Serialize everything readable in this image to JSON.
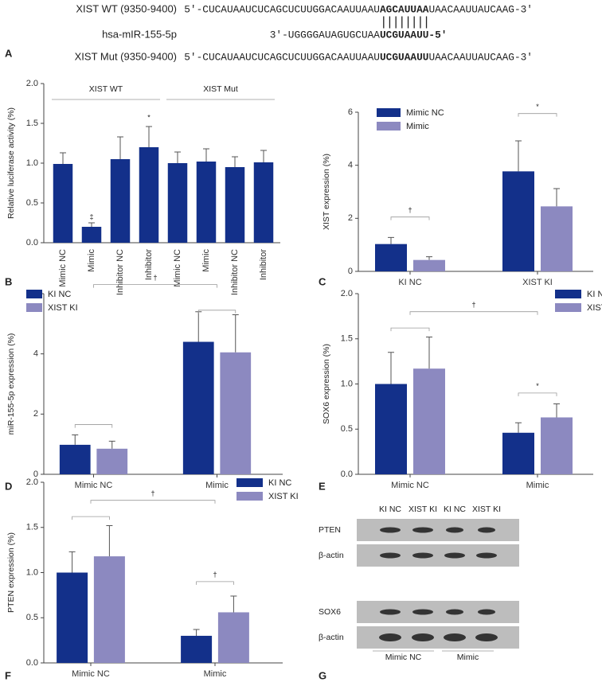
{
  "sequences": {
    "panel": "A",
    "pairing": "||||||||",
    "rows": [
      {
        "label": "XIST WT (9350-9400)",
        "parts": [
          "5'-CUCAUAAUCUCAGCUCUUGGACAAUUAAU",
          "AGCAUUAA",
          "UAACAAUUAUCAAG-3'"
        ]
      },
      {
        "label": "hsa-mIR-155-5p",
        "parts": [
          "3'-UGGGGAUAGUGCUAA",
          "UCGUAAUU-5'"
        ]
      },
      {
        "label": "XIST Mut (9350-9400)",
        "parts": [
          "5'-CUCAUAAUCUCAGCUCUUGGACAAUUAAU",
          "UCGUAAUU",
          "UAACAAUUAUCAAG-3'"
        ]
      }
    ]
  },
  "chart_data": [
    {
      "type": "bar",
      "panel": "B",
      "ylabel": "Relative luciferase activity (%)",
      "categories": [
        "Mimic NC",
        "Mimic",
        "Inhibitor NC",
        "Inhibitor",
        "Mimic NC",
        "Mimic",
        "Inhibitor NC",
        "Inhibitor"
      ],
      "values": [
        0.99,
        0.2,
        1.05,
        1.2,
        1.0,
        1.02,
        0.95,
        1.01
      ],
      "errors": [
        0.14,
        0.05,
        0.28,
        0.26,
        0.14,
        0.16,
        0.13,
        0.15
      ],
      "color": "#13308a",
      "groups": [
        "XIST WT",
        "XIST Mut"
      ],
      "annotations": [
        "‡",
        "*"
      ],
      "ylim": [
        0,
        2
      ],
      "yticks": [
        {
          "value": 0,
          "label": "0.0"
        },
        {
          "value": 0.5,
          "label": "0.5"
        },
        {
          "value": 1,
          "label": "1.0"
        },
        {
          "value": 1.5,
          "label": "1.5"
        },
        {
          "value": 2,
          "label": "2.0"
        }
      ]
    },
    {
      "type": "bar",
      "panel": "C",
      "ylabel": "XIST expression (%)",
      "legend": "upper left",
      "categories": [
        "KI NC",
        "XIST KI"
      ],
      "series": [
        {
          "name": "Mimic NC",
          "color": "#13308a",
          "values": [
            1.03,
            3.77
          ],
          "errors": [
            0.25,
            1.15
          ]
        },
        {
          "name": "Mimic",
          "color": "#8c89c0",
          "values": [
            0.43,
            2.45
          ],
          "errors": [
            0.12,
            0.67
          ]
        }
      ],
      "annotations": [
        "†",
        "*"
      ],
      "ylim": [
        0,
        6
      ],
      "yticks": [
        0,
        2,
        4,
        6
      ]
    },
    {
      "type": "bar",
      "panel": "D",
      "ylabel": "miR-155-5p expression (%)",
      "legend": "upper left",
      "categories": [
        "Mimic NC",
        "Mimic"
      ],
      "series": [
        {
          "name": "KI NC",
          "color": "#13308a",
          "values": [
            0.98,
            4.4
          ],
          "errors": [
            0.33,
            1.0
          ]
        },
        {
          "name": "XIST KI",
          "color": "#8c89c0",
          "values": [
            0.85,
            4.05
          ],
          "errors": [
            0.25,
            1.25
          ]
        }
      ],
      "annotations": [
        "†"
      ],
      "ylim": [
        0,
        6
      ],
      "yticks": [
        0,
        2,
        4,
        6
      ]
    },
    {
      "type": "bar",
      "panel": "E",
      "ylabel": "SOX6 expression (%)",
      "legend": "upper right",
      "categories": [
        "Mimic NC",
        "Mimic"
      ],
      "series": [
        {
          "name": "KI NC",
          "color": "#13308a",
          "values": [
            1.0,
            0.46
          ],
          "errors": [
            0.35,
            0.11
          ]
        },
        {
          "name": "XIST KI",
          "color": "#8c89c0",
          "values": [
            1.17,
            0.63
          ],
          "errors": [
            0.35,
            0.15
          ]
        }
      ],
      "annotations": [
        "†",
        "*"
      ],
      "ylim": [
        0,
        2
      ],
      "yticks": [
        {
          "value": 0,
          "label": "0.0"
        },
        {
          "value": 0.5,
          "label": "0.5"
        },
        {
          "value": 1,
          "label": "1.0"
        },
        {
          "value": 1.5,
          "label": "1.5"
        },
        {
          "value": 2,
          "label": "2.0"
        }
      ]
    },
    {
      "type": "bar",
      "panel": "F",
      "ylabel": "PTEN expression (%)",
      "legend": "upper right",
      "categories": [
        "Mimic NC",
        "Mimic"
      ],
      "series": [
        {
          "name": "KI NC",
          "color": "#13308a",
          "values": [
            1.0,
            0.3
          ],
          "errors": [
            0.23,
            0.07
          ]
        },
        {
          "name": "XIST KI",
          "color": "#8c89c0",
          "values": [
            1.18,
            0.56
          ],
          "errors": [
            0.34,
            0.18
          ]
        }
      ],
      "annotations": [
        "†",
        "†"
      ],
      "ylim": [
        0,
        2
      ],
      "yticks": [
        {
          "value": 0,
          "label": "0.0"
        },
        {
          "value": 0.5,
          "label": "0.5"
        },
        {
          "value": 1,
          "label": "1.0"
        },
        {
          "value": 1.5,
          "label": "1.5"
        },
        {
          "value": 2,
          "label": "2.0"
        }
      ]
    }
  ],
  "blot": {
    "panel": "G",
    "columns": [
      "KI NC",
      "XIST KI",
      "KI NC",
      "XIST KI"
    ],
    "rows": [
      "PTEN",
      "β-actin",
      "SOX6",
      "β-actin"
    ],
    "groups": [
      "Mimic NC",
      "Mimic"
    ]
  }
}
